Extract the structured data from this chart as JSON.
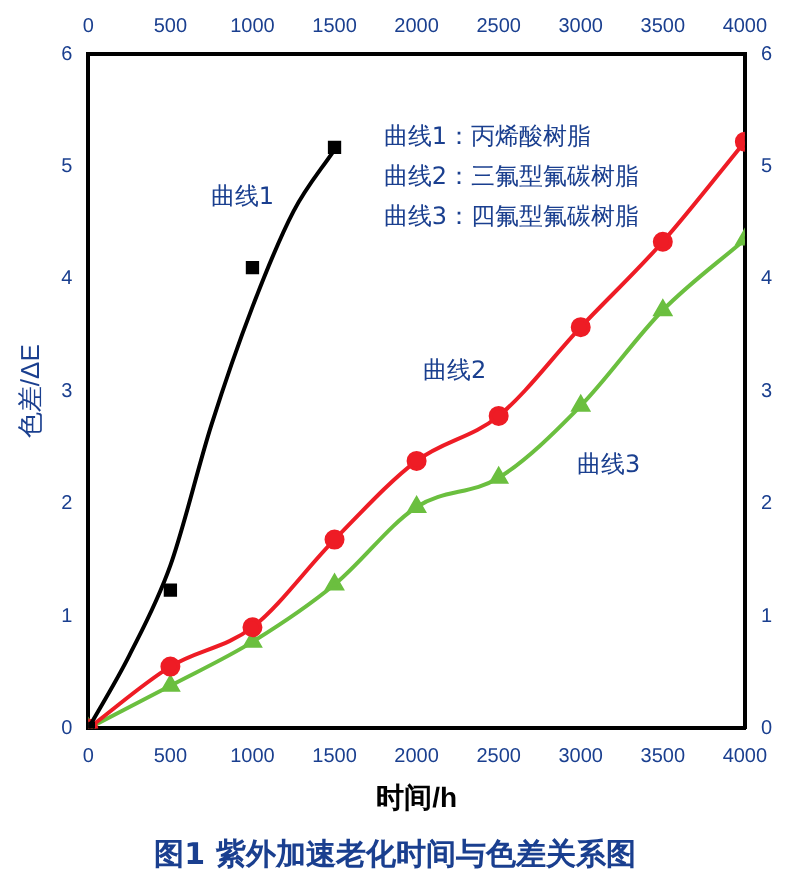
{
  "chart_data": {
    "type": "line",
    "title": "图1  紫外加速老化时间与色差关系图",
    "xlabel": "时间/h",
    "ylabel": "色差/ΔE",
    "x": [
      0,
      500,
      1000,
      1500,
      2000,
      2500,
      3000,
      3500,
      4000
    ],
    "series": [
      {
        "type": "scatter",
        "name": "曲线1",
        "color": "#000000",
        "marker": "square",
        "x": [
          0,
          500,
          1000,
          1500
        ],
        "values": [
          0,
          1.23,
          4.1,
          5.17
        ]
      },
      {
        "type": "line",
        "color": "#000000",
        "marker": "none",
        "x": [
          0,
          250,
          500,
          750,
          1000,
          1250,
          1500
        ],
        "values": [
          0,
          0.65,
          1.45,
          2.7,
          3.75,
          4.6,
          5.15
        ]
      },
      {
        "type": "line",
        "name": "曲线2",
        "color": "#ee1c25",
        "marker": "circle",
        "values": [
          0,
          0.55,
          0.9,
          1.68,
          2.38,
          2.78,
          3.57,
          4.33,
          5.22
        ]
      },
      {
        "type": "line",
        "name": "曲线3",
        "color": "#6bbf3f",
        "marker": "triangle",
        "values": [
          0,
          0.38,
          0.77,
          1.28,
          1.97,
          2.23,
          2.87,
          3.72,
          4.35
        ]
      }
    ],
    "xlim": [
      0,
      4000
    ],
    "xticks": [
      0,
      500,
      1000,
      1500,
      2000,
      2500,
      3000,
      3500,
      4000
    ],
    "x2lim": [
      0,
      4000
    ],
    "x2ticks": [
      0,
      500,
      1000,
      1500,
      2000,
      2500,
      3000,
      3500,
      4000
    ],
    "ylim": [
      0,
      6
    ],
    "yticks": [
      0,
      1,
      2,
      3,
      4,
      5,
      6
    ],
    "y2lim": [
      0,
      6
    ],
    "y2ticks": [
      0,
      1,
      2,
      3,
      4,
      5,
      6
    ],
    "grid": false,
    "legend": false,
    "line_style": "solid",
    "annotations": [
      "曲线1：丙烯酸树脂",
      "曲线2：三氟型氟碳树脂",
      "曲线3：四氟型氟碳树脂"
    ]
  }
}
